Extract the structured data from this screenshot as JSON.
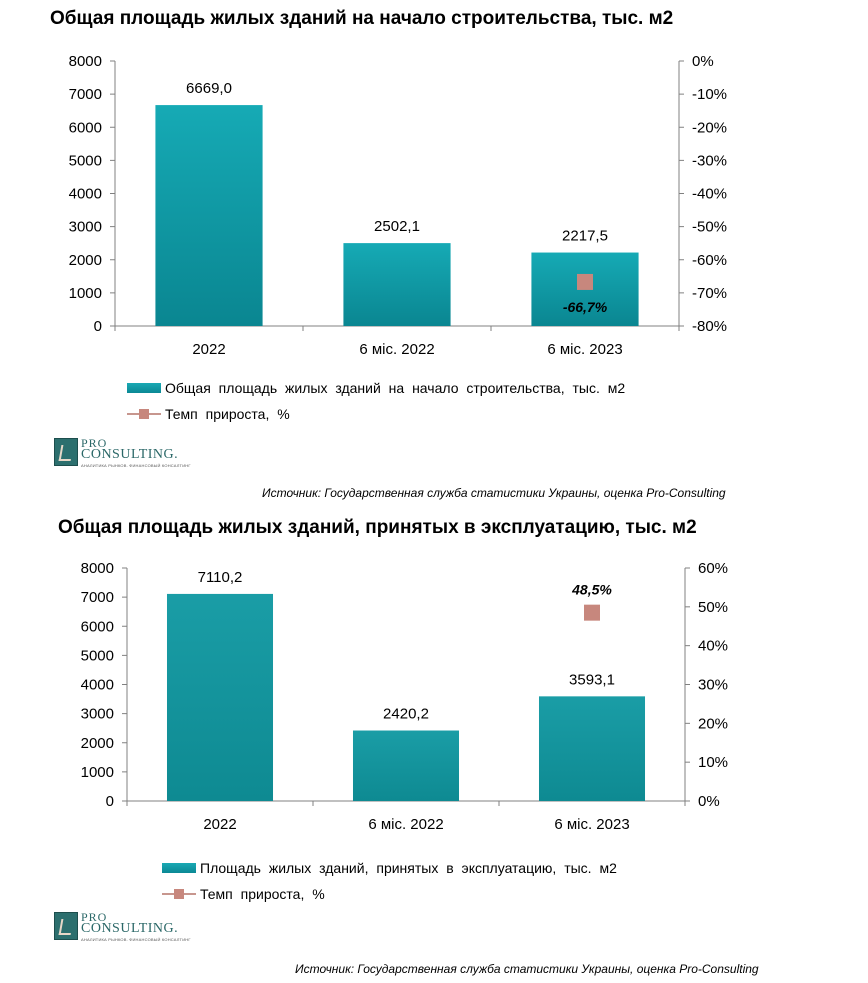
{
  "chart_data": [
    {
      "type": "bar",
      "title": "Общая площадь жилых зданий на начало строительства, тыс. м2",
      "categories": [
        "2022",
        "6 міс. 2022",
        "6 міс. 2023"
      ],
      "series": [
        {
          "name": "Общая площадь жилых зданий на начало строительства, тыс. м2",
          "type": "bar",
          "axis": "left",
          "values": [
            6669.0,
            2502.1,
            2217.5
          ],
          "labels": [
            "6669,0",
            "2502,1",
            "2217,5"
          ],
          "color": "#0fa0aa"
        },
        {
          "name": "Темп прироста, %",
          "type": "scatter",
          "axis": "right",
          "values": [
            null,
            null,
            -66.7
          ],
          "labels": [
            "",
            "",
            "-66,7%"
          ],
          "color": "#c7877d"
        }
      ],
      "ylim": [
        0,
        8000
      ],
      "yticks": [
        "0",
        "1000",
        "2000",
        "3000",
        "4000",
        "5000",
        "6000",
        "7000",
        "8000"
      ],
      "y2lim": [
        -80,
        0
      ],
      "y2ticks": [
        "-80%",
        "-70%",
        "-60%",
        "-50%",
        "-40%",
        "-30%",
        "-20%",
        "-10%",
        "0%"
      ],
      "legend": "bottom",
      "source": "Источник: Государственная служба статистики Украины, оценка Pro-Consulting"
    },
    {
      "type": "bar",
      "title": "Общая площадь жилых зданий, принятых в эксплуатацию, тыс. м2",
      "categories": [
        "2022",
        "6 міс. 2022",
        "6 міс. 2023"
      ],
      "series": [
        {
          "name": "Площадь жилых зданий, принятых в эксплуатацию, тыс. м2",
          "type": "bar",
          "axis": "left",
          "values": [
            7110.2,
            2420.2,
            3593.1
          ],
          "labels": [
            "7110,2",
            "2420,2",
            "3593,1"
          ],
          "color": "#1598a0"
        },
        {
          "name": "Темп прироста, %",
          "type": "scatter",
          "axis": "right",
          "values": [
            null,
            null,
            48.5
          ],
          "labels": [
            "",
            "",
            "48,5%"
          ],
          "color": "#c7877d"
        }
      ],
      "ylim": [
        0,
        8000
      ],
      "yticks": [
        "0",
        "1000",
        "2000",
        "3000",
        "4000",
        "5000",
        "6000",
        "7000",
        "8000"
      ],
      "y2lim": [
        0,
        60
      ],
      "y2ticks": [
        "0%",
        "10%",
        "20%",
        "30%",
        "40%",
        "50%",
        "60%"
      ],
      "legend": "bottom",
      "source": "Источник: Государственная служба статистики Украины, оценка Pro-Consulting"
    }
  ],
  "logo": {
    "pro": "PRO",
    "consulting": "CONSULTING.",
    "tagline": "АНАЛИТИКА РЫНКОВ. ФИНАНСОВЫЙ КОНСАЛТИНГ"
  }
}
